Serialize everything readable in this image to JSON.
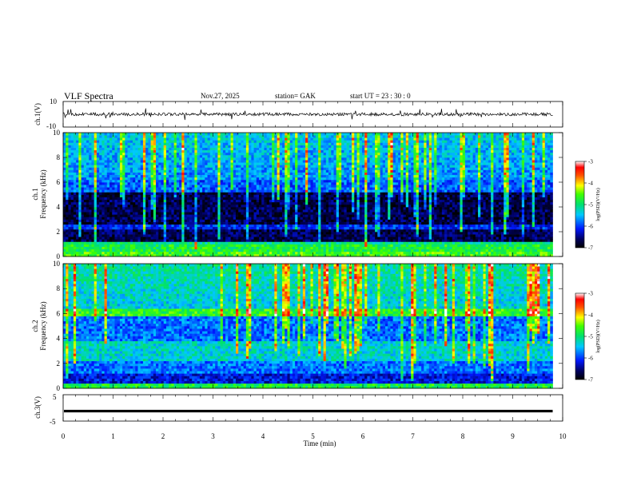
{
  "header": {
    "title": "VLF  Spectra",
    "date": "Nov.27, 2025",
    "station": "station= GAK",
    "start": "start  UT  =   23 : 30 : 0"
  },
  "chart_data": [
    {
      "id": "ch1-waveform",
      "type": "line",
      "ylabel": "ch.1(V)",
      "ylim": [
        -10,
        10
      ],
      "yticks": [
        "10",
        "-10"
      ],
      "xlim": [
        0,
        10
      ],
      "data_end_min": 9.8,
      "baseline_v": 0
    },
    {
      "id": "ch1-spectrogram",
      "type": "heatmap",
      "ylabel_top": "ch.1",
      "ylabel": "Frequency (kHz)",
      "ylim": [
        0,
        10
      ],
      "yticks": [
        "0",
        "2",
        "4",
        "6",
        "8",
        "10"
      ],
      "xlim": [
        0,
        10
      ],
      "colorbar": {
        "label": "log(PSD)(V²/Hz)",
        "range": [
          -7,
          -3
        ],
        "ticks": [
          "-3",
          "-4",
          "-5",
          "-6",
          "-7"
        ]
      }
    },
    {
      "id": "ch2-spectrogram",
      "type": "heatmap",
      "ylabel_top": "ch.2",
      "ylabel": "Frequency (kHz)",
      "ylim": [
        0,
        10
      ],
      "yticks": [
        "0",
        "2",
        "4",
        "6",
        "8",
        "10"
      ],
      "xlim": [
        0,
        10
      ],
      "colorbar": {
        "label": "log(PSD)(V²/Hz)",
        "range": [
          -7,
          -3
        ],
        "ticks": [
          "-3",
          "-4",
          "-5",
          "-6",
          "-7"
        ]
      }
    },
    {
      "id": "ch3-waveform",
      "type": "line",
      "ylabel": "ch.3(V)",
      "ylim": [
        -5,
        5
      ],
      "yticks": [
        "5",
        "-5"
      ],
      "xlim": [
        0,
        10
      ],
      "data_end_min": 9.8,
      "baseline_v": -1.2
    }
  ],
  "xaxis": {
    "label": "Time  (min)",
    "ticks": [
      "0",
      "1",
      "2",
      "3",
      "4",
      "5",
      "6",
      "7",
      "8",
      "9",
      "10"
    ]
  },
  "colors": {
    "ink": "#000000",
    "background": "#ffffff"
  }
}
